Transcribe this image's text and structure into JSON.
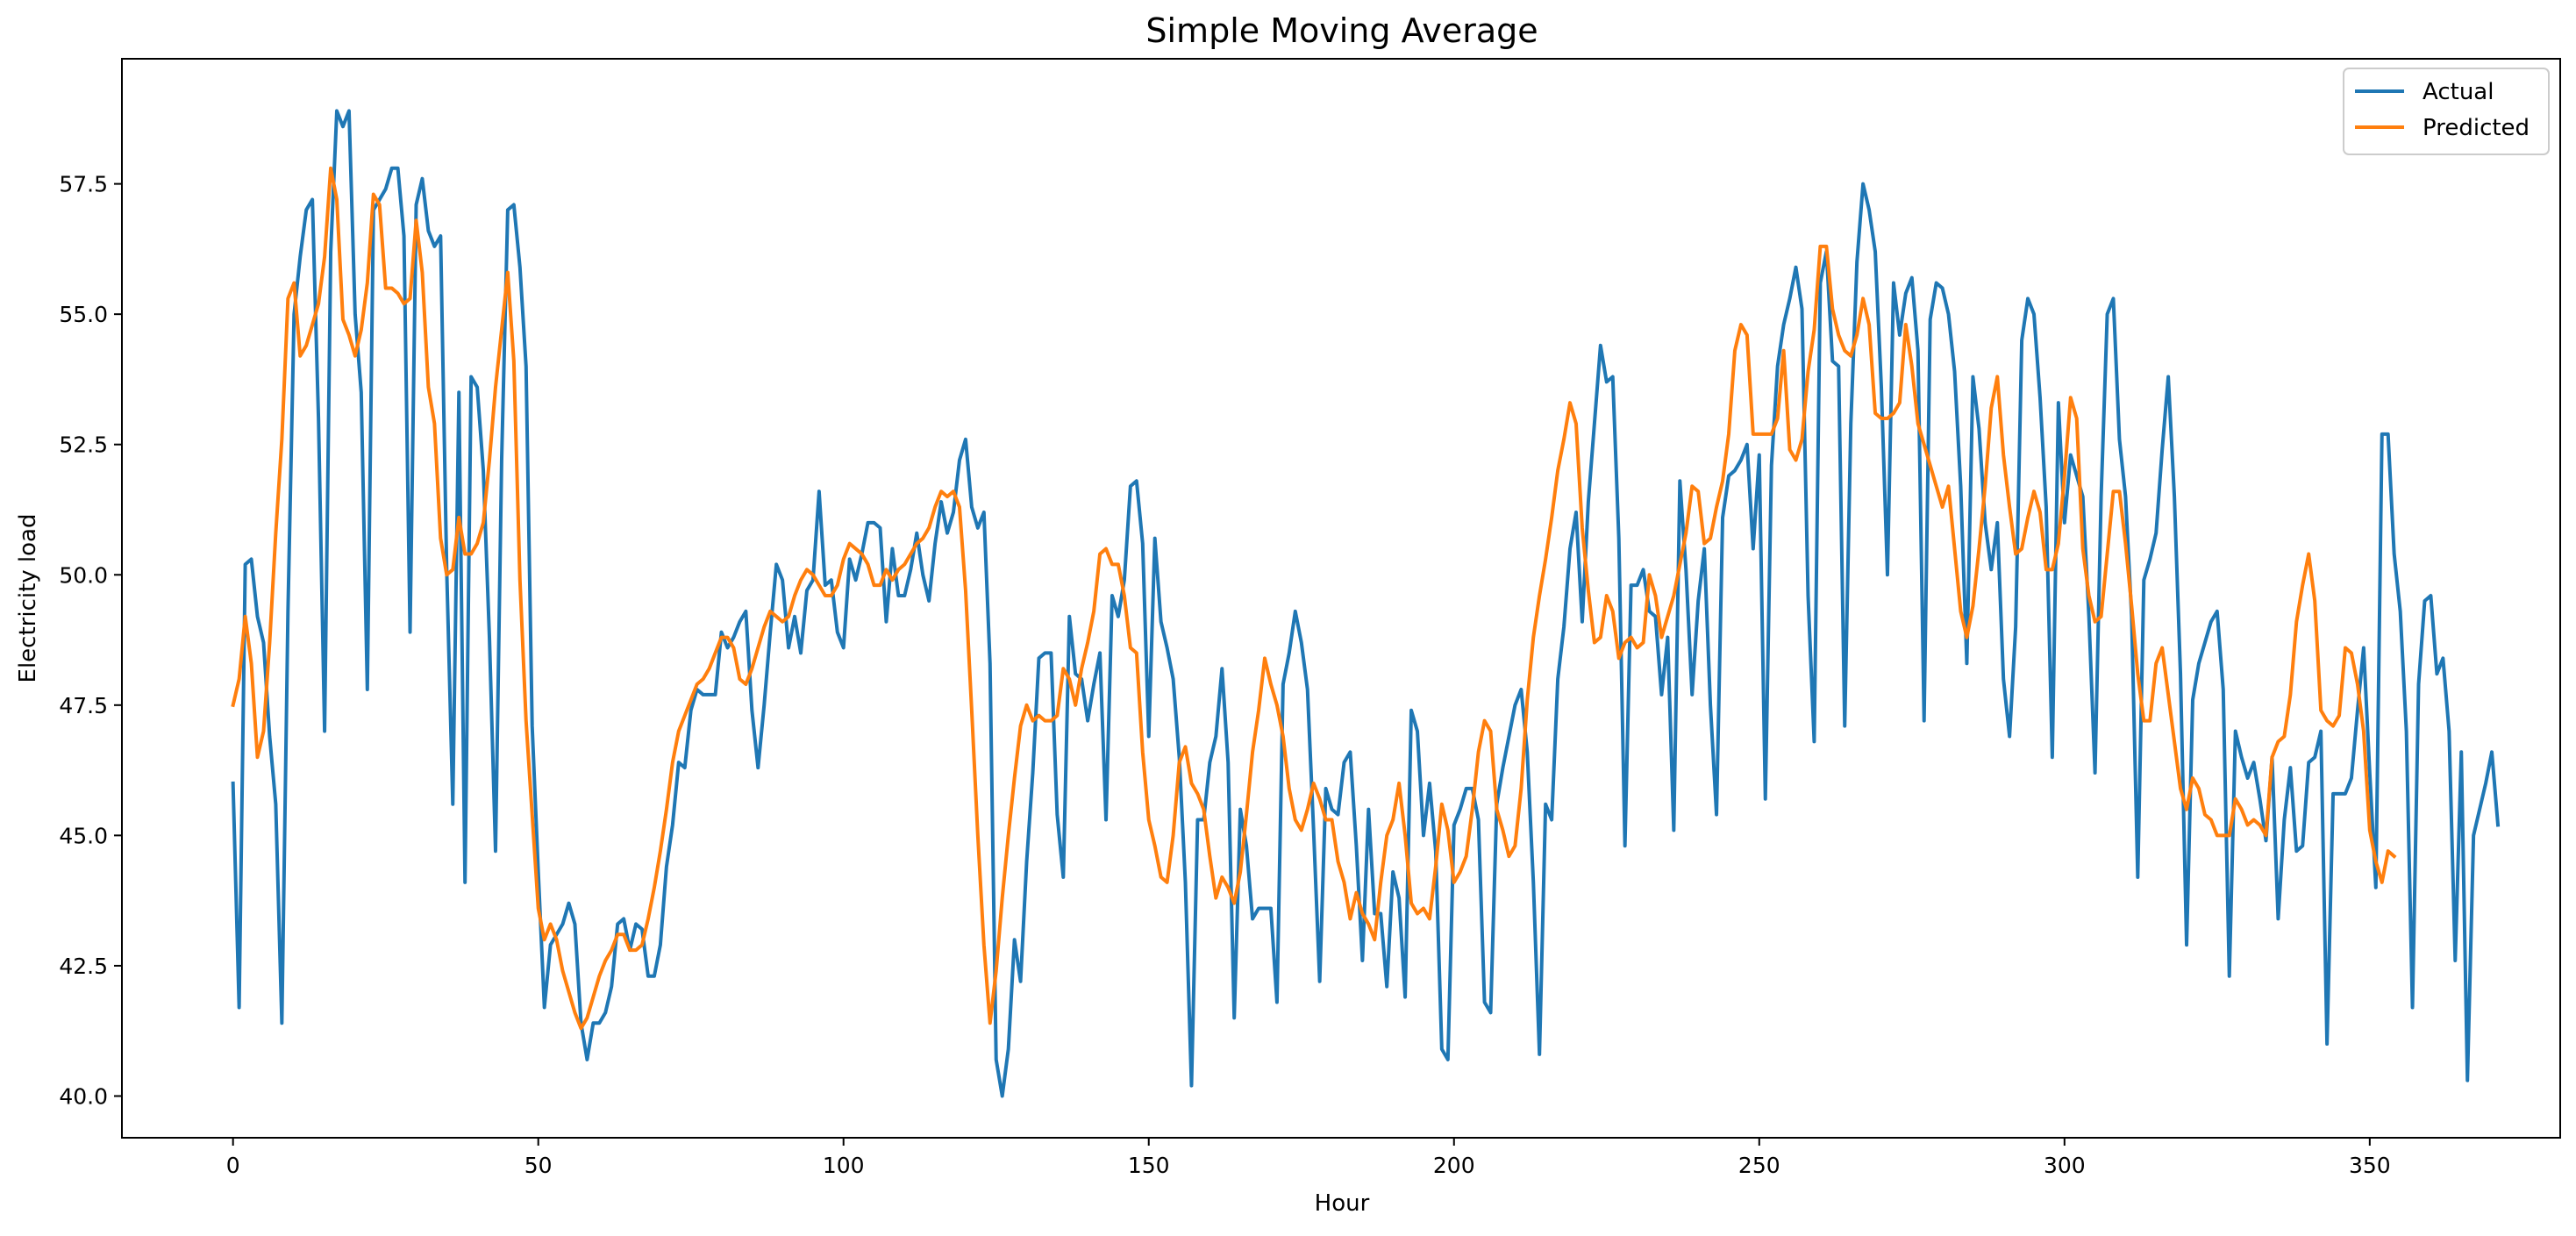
{
  "chart_data": {
    "type": "line",
    "title": "Simple Moving Average",
    "xlabel": "Hour",
    "ylabel": "Electricity load",
    "xlim": [
      -18.2,
      381.2
    ],
    "ylim": [
      39.2,
      59.9
    ],
    "xticks": [
      0,
      50,
      100,
      150,
      200,
      250,
      300,
      350
    ],
    "xtick_labels": [
      "0",
      "50",
      "100",
      "150",
      "200",
      "250",
      "300",
      "350"
    ],
    "yticks": [
      40.0,
      42.5,
      45.0,
      47.5,
      50.0,
      52.5,
      55.0,
      57.5
    ],
    "ytick_labels": [
      "40.0",
      "42.5",
      "45.0",
      "47.5",
      "50.0",
      "52.5",
      "55.0",
      "57.5"
    ],
    "grid": false,
    "legend_position": "top-right",
    "series": [
      {
        "name": "Actual",
        "color": "#1f77b4",
        "x_start": 0,
        "values": [
          46.0,
          41.7,
          50.2,
          50.3,
          49.2,
          48.7,
          46.9,
          45.6,
          41.4,
          49.3,
          55.0,
          56.1,
          57.0,
          57.2,
          53.0,
          47.0,
          56.2,
          58.9,
          58.6,
          58.9,
          55.0,
          53.5,
          47.8,
          57.0,
          57.2,
          57.4,
          57.8,
          57.8,
          56.5,
          48.9,
          57.1,
          57.6,
          56.6,
          56.3,
          56.5,
          50.1,
          45.6,
          53.5,
          44.1,
          53.8,
          53.6,
          52.0,
          48.8,
          44.7,
          52.2,
          57.0,
          57.1,
          55.9,
          54.0,
          47.1,
          44.3,
          41.7,
          42.9,
          43.1,
          43.3,
          43.7,
          43.3,
          41.4,
          40.7,
          41.4,
          41.4,
          41.6,
          42.1,
          43.3,
          43.4,
          42.8,
          43.3,
          43.2,
          42.3,
          42.3,
          42.9,
          44.4,
          45.2,
          46.4,
          46.3,
          47.4,
          47.8,
          47.7,
          47.7,
          47.7,
          48.9,
          48.6,
          48.8,
          49.1,
          49.3,
          47.4,
          46.3,
          47.5,
          48.9,
          50.2,
          49.9,
          48.6,
          49.2,
          48.5,
          49.7,
          49.9,
          51.6,
          49.8,
          49.9,
          48.9,
          48.6,
          50.3,
          49.9,
          50.4,
          51.0,
          51.0,
          50.9,
          49.1,
          50.5,
          49.6,
          49.6,
          50.1,
          50.8,
          50.0,
          49.5,
          50.6,
          51.4,
          50.8,
          51.2,
          52.2,
          52.6,
          51.3,
          50.9,
          51.2,
          48.3,
          40.7,
          40.0,
          40.9,
          43.0,
          42.2,
          44.5,
          46.2,
          48.4,
          48.5,
          48.5,
          45.4,
          44.2,
          49.2,
          48.1,
          48.0,
          47.2,
          47.9,
          48.5,
          45.3,
          49.6,
          49.2,
          49.9,
          51.7,
          51.8,
          50.6,
          46.9,
          50.7,
          49.1,
          48.6,
          48.0,
          46.5,
          44.1,
          40.2,
          45.3,
          45.3,
          46.4,
          46.9,
          48.2,
          46.4,
          41.5,
          45.5,
          44.8,
          43.4,
          43.6,
          43.6,
          43.6,
          41.8,
          47.9,
          48.5,
          49.3,
          48.7,
          47.8,
          45.1,
          42.2,
          45.9,
          45.5,
          45.4,
          46.4,
          46.6,
          44.8,
          42.6,
          45.5,
          43.5,
          43.5,
          42.1,
          44.3,
          43.8,
          41.9,
          47.4,
          47.0,
          45.0,
          46.0,
          44.7,
          40.9,
          40.7,
          45.2,
          45.5,
          45.9,
          45.9,
          45.3,
          41.8,
          41.6,
          45.6,
          46.3,
          46.9,
          47.5,
          47.8,
          46.6,
          44.1,
          40.8,
          45.6,
          45.3,
          48.0,
          49.0,
          50.5,
          51.2,
          49.1,
          51.4,
          52.9,
          54.4,
          53.7,
          53.8,
          50.7,
          44.8,
          49.8,
          49.8,
          50.1,
          49.3,
          49.2,
          47.7,
          48.8,
          45.1,
          51.8,
          50.1,
          47.7,
          49.5,
          50.5,
          47.5,
          45.4,
          51.1,
          51.9,
          52.0,
          52.2,
          52.5,
          50.5,
          52.3,
          45.7,
          52.1,
          54.0,
          54.8,
          55.3,
          55.9,
          55.1,
          49.6,
          46.8,
          55.6,
          56.2,
          54.1,
          54.0,
          47.1,
          52.9,
          56.0,
          57.5,
          57.0,
          56.2,
          53.6,
          50.0,
          55.6,
          54.6,
          55.4,
          55.7,
          54.3,
          47.2,
          54.9,
          55.6,
          55.5,
          55.0,
          53.9,
          51.7,
          48.3,
          53.8,
          52.8,
          51.0,
          50.1,
          51.0,
          48.0,
          46.9,
          49.0,
          54.5,
          55.3,
          55.0,
          53.4,
          51.3,
          46.5,
          53.3,
          51.0,
          52.3,
          51.9,
          51.5,
          49.2,
          46.2,
          51.5,
          55.0,
          55.3,
          52.6,
          51.5,
          49.2,
          44.2,
          49.9,
          50.3,
          50.8,
          52.4,
          53.8,
          51.5,
          48.1,
          42.9,
          47.6,
          48.3,
          48.7,
          49.1,
          49.3,
          47.8,
          42.3,
          47.0,
          46.5,
          46.1,
          46.4,
          45.7,
          44.9,
          46.5,
          43.4,
          45.3,
          46.3,
          44.7,
          44.8,
          46.4,
          46.5,
          47.0,
          41.0,
          45.8,
          45.8,
          45.8,
          46.1,
          47.4,
          48.6,
          46.2,
          44.0,
          52.7,
          52.7,
          50.4,
          49.3,
          47.0,
          41.7,
          47.9,
          49.5,
          49.6,
          48.1,
          48.4,
          47.0,
          42.6,
          46.6,
          40.3,
          45.0,
          45.5,
          46.0,
          46.6,
          45.2
        ]
      },
      {
        "name": "Predicted",
        "color": "#ff7f0e",
        "x_start": 0,
        "values": [
          47.5,
          48.0,
          49.2,
          48.3,
          46.5,
          47.0,
          48.7,
          50.8,
          52.6,
          55.3,
          55.6,
          54.2,
          54.4,
          54.8,
          55.2,
          56.1,
          57.8,
          57.2,
          54.9,
          54.6,
          54.2,
          54.7,
          55.6,
          57.3,
          57.1,
          55.5,
          55.5,
          55.4,
          55.2,
          55.3,
          56.8,
          55.8,
          53.6,
          52.9,
          50.7,
          50.0,
          50.1,
          51.1,
          50.4,
          50.4,
          50.6,
          51.0,
          52.2,
          53.6,
          54.7,
          55.8,
          54.1,
          49.9,
          47.2,
          45.4,
          43.6,
          43.0,
          43.3,
          43.0,
          42.4,
          42.0,
          41.6,
          41.3,
          41.5,
          41.9,
          42.3,
          42.6,
          42.8,
          43.1,
          43.1,
          42.8,
          42.8,
          42.9,
          43.4,
          44.0,
          44.7,
          45.5,
          46.4,
          47.0,
          47.3,
          47.6,
          47.9,
          48.0,
          48.2,
          48.5,
          48.8,
          48.8,
          48.6,
          48.0,
          47.9,
          48.2,
          48.6,
          49.0,
          49.3,
          49.2,
          49.1,
          49.2,
          49.6,
          49.9,
          50.1,
          50.0,
          49.8,
          49.6,
          49.6,
          49.8,
          50.3,
          50.6,
          50.5,
          50.4,
          50.2,
          49.8,
          49.8,
          50.1,
          49.9,
          50.1,
          50.2,
          50.4,
          50.6,
          50.7,
          50.9,
          51.3,
          51.6,
          51.5,
          51.6,
          51.3,
          49.7,
          47.4,
          45.0,
          42.9,
          41.4,
          42.4,
          43.8,
          45.0,
          46.1,
          47.1,
          47.5,
          47.2,
          47.3,
          47.2,
          47.2,
          47.3,
          48.2,
          48.0,
          47.5,
          48.2,
          48.7,
          49.3,
          50.4,
          50.5,
          50.2,
          50.2,
          49.6,
          48.6,
          48.5,
          46.6,
          45.3,
          44.8,
          44.2,
          44.1,
          45.0,
          46.4,
          46.7,
          46.0,
          45.8,
          45.5,
          44.6,
          43.8,
          44.2,
          44.0,
          43.7,
          44.3,
          45.4,
          46.6,
          47.4,
          48.4,
          47.9,
          47.5,
          46.9,
          45.9,
          45.3,
          45.1,
          45.5,
          46.0,
          45.7,
          45.3,
          45.3,
          44.5,
          44.1,
          43.4,
          43.9,
          43.5,
          43.3,
          43.0,
          44.1,
          45.0,
          45.3,
          46.0,
          45.0,
          43.7,
          43.5,
          43.6,
          43.4,
          44.4,
          45.6,
          45.1,
          44.1,
          44.3,
          44.6,
          45.5,
          46.6,
          47.2,
          47.0,
          45.5,
          45.1,
          44.6,
          44.8,
          45.9,
          47.6,
          48.8,
          49.6,
          50.3,
          51.1,
          52.0,
          52.6,
          53.3,
          52.9,
          50.9,
          49.7,
          48.7,
          48.8,
          49.6,
          49.3,
          48.4,
          48.7,
          48.8,
          48.6,
          48.7,
          50.0,
          49.6,
          48.8,
          49.2,
          49.6,
          50.2,
          50.8,
          51.7,
          51.6,
          50.6,
          50.7,
          51.3,
          51.8,
          52.7,
          54.3,
          54.8,
          54.6,
          52.7,
          52.7,
          52.7,
          52.7,
          53.0,
          54.3,
          52.4,
          52.2,
          52.6,
          53.9,
          54.7,
          56.3,
          56.3,
          55.1,
          54.6,
          54.3,
          54.2,
          54.6,
          55.3,
          54.8,
          53.1,
          53.0,
          53.0,
          53.1,
          53.3,
          54.8,
          54.0,
          52.9,
          52.5,
          52.1,
          51.7,
          51.3,
          51.7,
          50.5,
          49.3,
          48.8,
          49.4,
          50.5,
          51.7,
          53.2,
          53.8,
          52.3,
          51.3,
          50.4,
          50.5,
          51.1,
          51.6,
          51.2,
          50.1,
          50.1,
          50.6,
          51.9,
          53.4,
          53.0,
          50.5,
          49.6,
          49.1,
          49.2,
          50.4,
          51.6,
          51.6,
          50.6,
          49.4,
          48.1,
          47.2,
          47.2,
          48.3,
          48.6,
          47.7,
          46.8,
          45.9,
          45.5,
          46.1,
          45.9,
          45.4,
          45.3,
          45.0,
          45.0,
          45.0,
          45.7,
          45.5,
          45.2,
          45.3,
          45.2,
          45.0,
          46.5,
          46.8,
          46.9,
          47.7,
          49.1,
          49.8,
          50.4,
          49.5,
          47.4,
          47.2,
          47.1,
          47.3,
          48.6,
          48.5,
          47.9,
          47.0,
          45.1,
          44.5,
          44.1,
          44.7,
          44.6
        ]
      }
    ]
  }
}
